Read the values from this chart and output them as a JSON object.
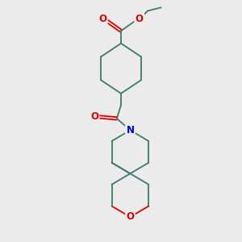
{
  "background_color": "#ebebeb",
  "bond_color": "#3d7a6a",
  "o_color": "#dd0000",
  "n_color": "#0000cc",
  "lw": 1.3,
  "fs": 8.5,
  "fig_w": 3.0,
  "fig_h": 3.0,
  "dpi": 100,
  "xlim": [
    40,
    220
  ],
  "ylim": [
    5,
    295
  ]
}
